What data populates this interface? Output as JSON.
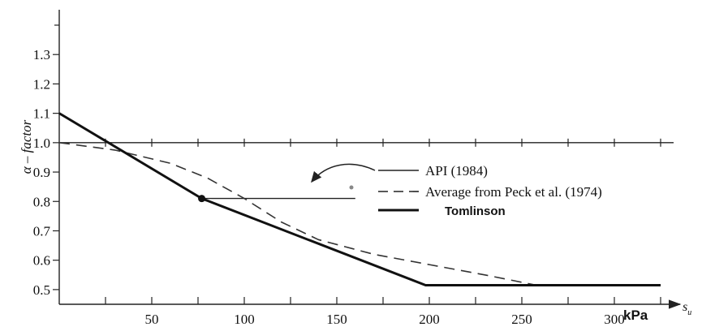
{
  "chart_data": {
    "type": "line",
    "title": "",
    "xlabel": "s_u",
    "x_unit_label": "kPa",
    "ylabel": "α – factor",
    "xlim": [
      0,
      335
    ],
    "ylim": [
      0.45,
      1.4
    ],
    "x_ticks": [
      50,
      100,
      150,
      200,
      250,
      300
    ],
    "x_ticks_minor": [
      25,
      75,
      125,
      175,
      225,
      275,
      325
    ],
    "y_ticks": [
      0.5,
      0.6,
      0.7,
      0.8,
      0.9,
      1.0,
      1.1,
      1.2,
      1.3
    ],
    "grid": false,
    "reference_line": {
      "y": 1.0
    },
    "legend_position": "right",
    "series": [
      {
        "name": "API (1984)",
        "style": "thin-solid",
        "points": [
          [
            77,
            0.81
          ],
          [
            160,
            0.81
          ]
        ]
      },
      {
        "name": "Average from Peck et al. (1974)",
        "style": "dashed",
        "points": [
          [
            0,
            1.0
          ],
          [
            30,
            0.975
          ],
          [
            60,
            0.93
          ],
          [
            80,
            0.88
          ],
          [
            100,
            0.81
          ],
          [
            120,
            0.73
          ],
          [
            140,
            0.67
          ],
          [
            170,
            0.62
          ],
          [
            200,
            0.585
          ],
          [
            230,
            0.55
          ],
          [
            258,
            0.515
          ]
        ]
      },
      {
        "name": "Tomlinson",
        "style": "thick-solid",
        "points": [
          [
            0,
            1.1
          ],
          [
            77,
            0.81
          ],
          [
            198,
            0.515
          ],
          [
            325,
            0.515
          ]
        ]
      }
    ]
  }
}
